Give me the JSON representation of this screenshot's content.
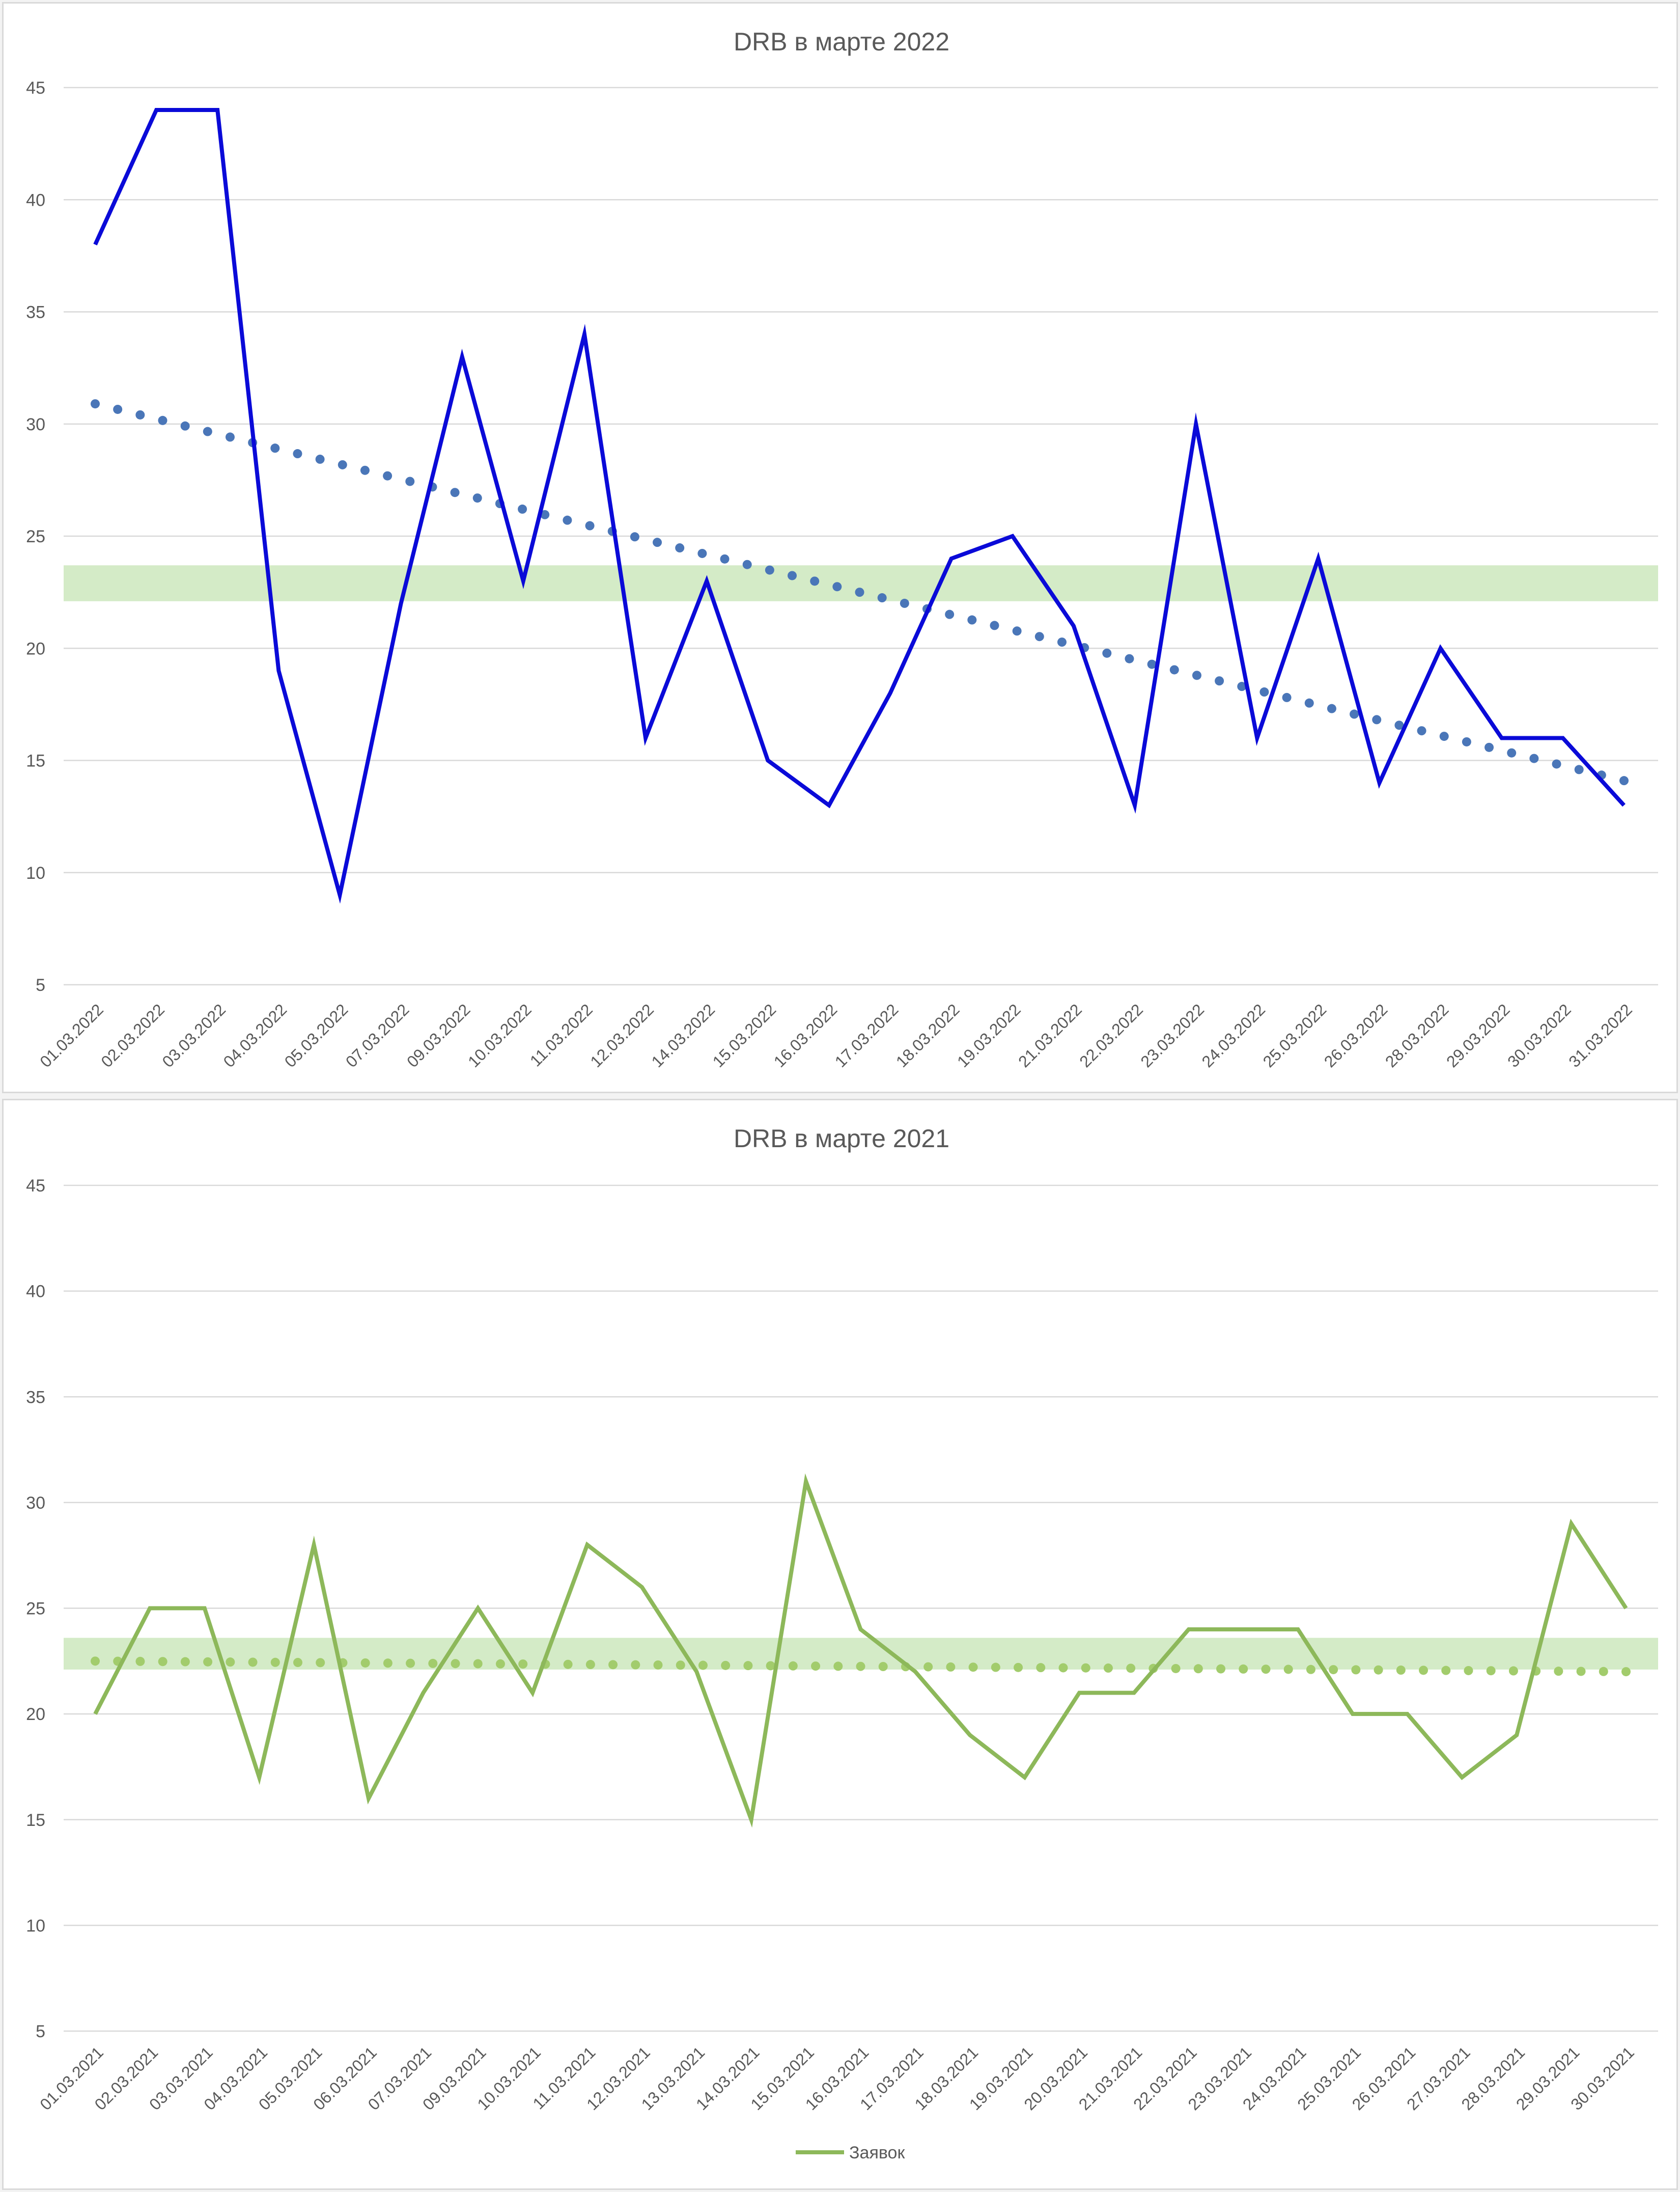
{
  "chart_data": [
    {
      "type": "line",
      "title": "DRB в марте 2022",
      "xlabel": "",
      "ylabel": "",
      "ylim": [
        5,
        45
      ],
      "yticks": [
        5,
        10,
        15,
        20,
        25,
        30,
        35,
        40,
        45
      ],
      "grid": true,
      "categories": [
        "01.03.2022",
        "02.03.2022",
        "03.03.2022",
        "04.03.2022",
        "05.03.2022",
        "07.03.2022",
        "09.03.2022",
        "10.03.2022",
        "11.03.2022",
        "12.03.2022",
        "14.03.2022",
        "15.03.2022",
        "16.03.2022",
        "17.03.2022",
        "18.03.2022",
        "19.03.2022",
        "21.03.2022",
        "22.03.2022",
        "23.03.2022",
        "24.03.2022",
        "25.03.2022",
        "26.03.2022",
        "28.03.2022",
        "29.03.2022",
        "30.03.2022",
        "31.03.2022"
      ],
      "series": [
        {
          "values": [
            38,
            44,
            44,
            19,
            9,
            22,
            33,
            23,
            34,
            16,
            23,
            15,
            13,
            18,
            24,
            25,
            21,
            13,
            30,
            16,
            24,
            14,
            20,
            16,
            16,
            13
          ],
          "color": "#0a0ad8"
        }
      ],
      "trendline": {
        "type": "linear",
        "start": 30.9,
        "end": 14.1,
        "color": "#4a76b8",
        "style": "dotted"
      },
      "band": {
        "from": 22.1,
        "to": 23.7,
        "color": "#c6e4b4"
      }
    },
    {
      "type": "line",
      "title": "DRB в марте 2021",
      "xlabel": "",
      "ylabel": "",
      "ylim": [
        5,
        45
      ],
      "yticks": [
        5,
        10,
        15,
        20,
        25,
        30,
        35,
        40,
        45
      ],
      "grid": true,
      "legend_position": "bottom",
      "categories": [
        "01.03.2021",
        "02.03.2021",
        "03.03.2021",
        "04.03.2021",
        "05.03.2021",
        "06.03.2021",
        "07.03.2021",
        "09.03.2021",
        "10.03.2021",
        "11.03.2021",
        "12.03.2021",
        "13.03.2021",
        "14.03.2021",
        "15.03.2021",
        "16.03.2021",
        "17.03.2021",
        "18.03.2021",
        "19.03.2021",
        "20.03.2021",
        "21.03.2021",
        "22.03.2021",
        "23.03.2021",
        "24.03.2021",
        "25.03.2021",
        "26.03.2021",
        "27.03.2021",
        "28.03.2021",
        "29.03.2021",
        "30.03.2021"
      ],
      "series": [
        {
          "name": "Заявок",
          "values": [
            20,
            25,
            25,
            17,
            28,
            16,
            21,
            25,
            21,
            28,
            26,
            22,
            15,
            31,
            24,
            22,
            19,
            17,
            21,
            21,
            24,
            24,
            24,
            20,
            20,
            17,
            19,
            29,
            25
          ],
          "color": "#8db85a"
        }
      ],
      "trendline": {
        "type": "linear",
        "start": 22.5,
        "end": 22.0,
        "color": "#a2cc6c",
        "style": "dotted"
      },
      "band": {
        "from": 22.1,
        "to": 23.6,
        "color": "#c6e4b4"
      }
    }
  ]
}
